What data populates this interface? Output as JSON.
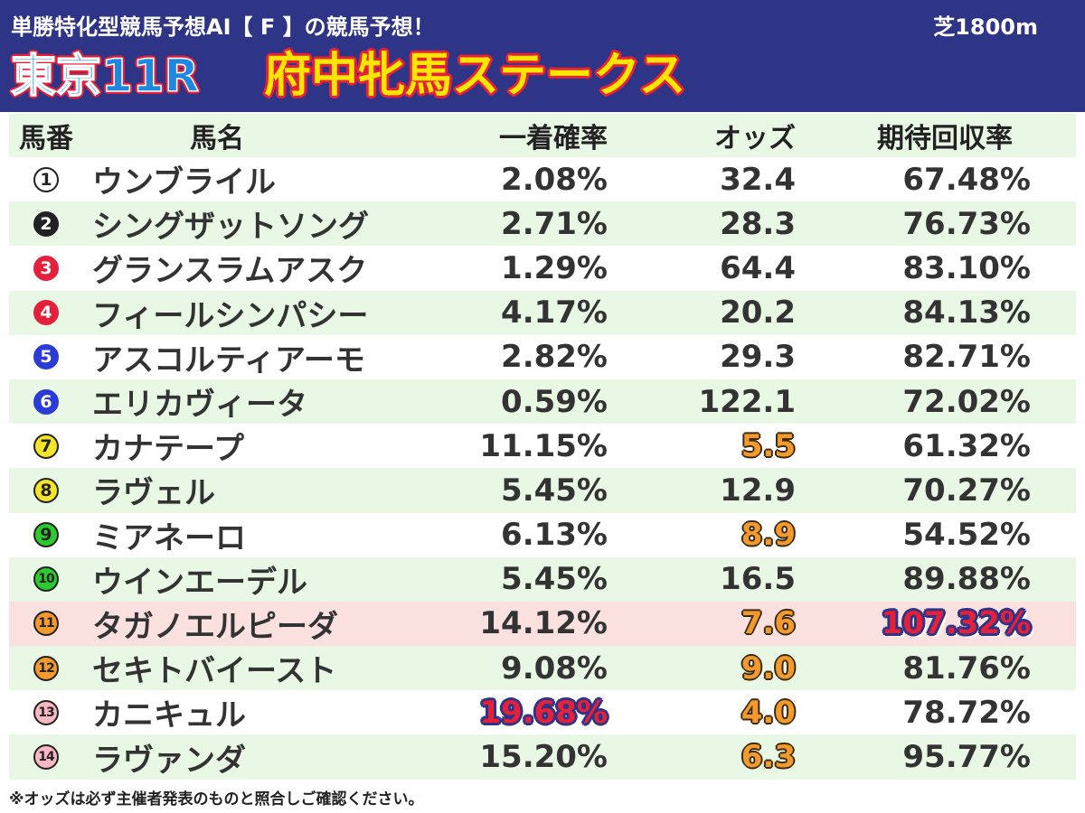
{
  "header": {
    "subtitle": "単勝特化型競馬予想AI【 F 】の競馬予想！",
    "course": "芝1800m",
    "race": "東京11R",
    "race_name": "府中牝馬ステークス"
  },
  "table": {
    "columns": [
      "馬番",
      "馬名",
      "一着確率",
      "オッズ",
      "期待回収率"
    ],
    "rows": [
      {
        "num": "①",
        "name": "ウンブライル",
        "prob": "2.08%",
        "odds": "32.4",
        "ret": "67.48%"
      },
      {
        "num": "2",
        "name": "シングザットソング",
        "prob": "2.71%",
        "odds": "28.3",
        "ret": "76.73%"
      },
      {
        "num": "3",
        "name": "グランスラムアスク",
        "prob": "1.29%",
        "odds": "64.4",
        "ret": "83.10%"
      },
      {
        "num": "4",
        "name": "フィールシンパシー",
        "prob": "4.17%",
        "odds": "20.2",
        "ret": "84.13%"
      },
      {
        "num": "5",
        "name": "アスコルティアーモ",
        "prob": "2.82%",
        "odds": "29.3",
        "ret": "82.71%"
      },
      {
        "num": "6",
        "name": "エリカヴィータ",
        "prob": "0.59%",
        "odds": "122.1",
        "ret": "72.02%"
      },
      {
        "num": "7",
        "name": "カナテープ",
        "prob": "11.15%",
        "odds": "5.5",
        "ret": "61.32%"
      },
      {
        "num": "8",
        "name": "ラヴェル",
        "prob": "5.45%",
        "odds": "12.9",
        "ret": "70.27%"
      },
      {
        "num": "9",
        "name": "ミアネーロ",
        "prob": "6.13%",
        "odds": "8.9",
        "ret": "54.52%"
      },
      {
        "num": "10",
        "name": "ウインエーデル",
        "prob": "5.45%",
        "odds": "16.5",
        "ret": "89.88%"
      },
      {
        "num": "11",
        "name": "タガノエルピーダ",
        "prob": "14.12%",
        "odds": "7.6",
        "ret": "107.32%"
      },
      {
        "num": "12",
        "name": "セキトバイースト",
        "prob": "9.08%",
        "odds": "9.0",
        "ret": "81.76%"
      },
      {
        "num": "13",
        "name": "カニキュル",
        "prob": "19.68%",
        "odds": "4.0",
        "ret": "78.72%"
      },
      {
        "num": "14",
        "name": "ラヴァンダ",
        "prob": "15.20%",
        "odds": "6.3",
        "ret": "95.77%"
      }
    ]
  },
  "footnote": "※オッズは必ず主催者発表のものと照合しご確認ください。",
  "colors": {
    "header_bg": "#2e3486",
    "row_green": "#e8f8e4",
    "row_pink": "#fbe0e0",
    "highlight_orange": "#f39a2e",
    "highlight_red": "#e5203a",
    "gate_1": "#ffffff",
    "gate_2": "#222222",
    "gate_3": "#e5203a",
    "gate_4": "#2a3bd8",
    "gate_5": "#f5e52a",
    "gate_6": "#2ec92e",
    "gate_7": "#f39a2e",
    "gate_8": "#f7b8c4"
  }
}
